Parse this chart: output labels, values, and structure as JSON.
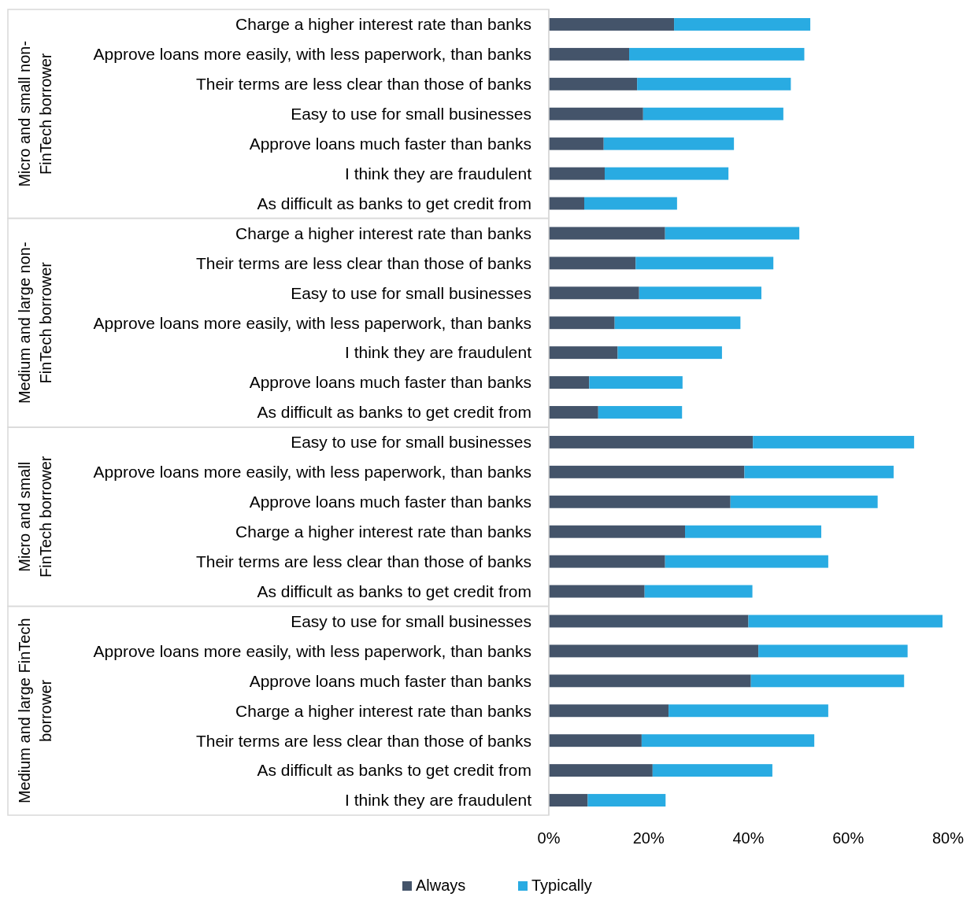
{
  "chart_data": {
    "type": "bar",
    "orientation": "horizontal",
    "stacked": true,
    "legend": "bottom",
    "grid": false,
    "categories": [
      "Charge a higher interest rate than banks",
      "Approve loans more easily, with less paperwork, than banks",
      "Their terms are less clear than those of banks",
      "Easy to use for small businesses",
      "Approve loans much faster than banks",
      "I think they are fraudulent",
      "As difficult as banks to get credit from",
      "Charge a higher interest rate than banks",
      "Their terms are less clear than those of banks",
      "Easy to use for small businesses",
      "Approve loans more easily, with less paperwork, than banks",
      "I think they are fraudulent",
      "Approve loans much faster than banks",
      "As difficult as banks to get credit from",
      "Easy to use for small businesses",
      "Approve loans more easily, with less paperwork, than banks",
      "Approve loans much faster than banks",
      "Charge a higher interest rate than banks",
      "Their terms are less clear than those of banks",
      "As difficult as banks to get credit from",
      "Easy to use for small businesses",
      "Approve loans more easily, with less paperwork, than banks",
      "Approve loans much faster than banks",
      "Charge a higher interest rate than banks",
      "Their terms are less clear than those of banks",
      "As difficult as banks to get credit from",
      "I think they are fraudulent"
    ],
    "series": [
      {
        "name": "Always",
        "color": "#44546a",
        "values": [
          25.1,
          16.1,
          17.7,
          18.9,
          11.0,
          11.2,
          7.1,
          23.3,
          17.4,
          18.1,
          13.2,
          13.8,
          8.1,
          9.9,
          40.9,
          39.2,
          36.4,
          27.3,
          23.3,
          19.2,
          40.0,
          42.0,
          40.5,
          24.0,
          18.6,
          20.8,
          7.8
        ]
      },
      {
        "name": "Typically",
        "color": "#29abe2",
        "values": [
          27.3,
          35.1,
          30.8,
          28.1,
          26.1,
          24.8,
          18.6,
          26.9,
          27.6,
          24.5,
          25.2,
          20.9,
          18.7,
          16.8,
          32.3,
          29.9,
          29.5,
          27.3,
          32.7,
          21.6,
          38.9,
          29.9,
          30.7,
          32.0,
          34.6,
          24.0,
          15.6
        ]
      }
    ],
    "xlim": [
      0,
      80
    ],
    "xticks": [
      {
        "value": 0,
        "label": "0%"
      },
      {
        "value": 20,
        "label": "20%"
      },
      {
        "value": 40,
        "label": "40%"
      },
      {
        "value": 60,
        "label": "60%"
      },
      {
        "value": 80,
        "label": "80%"
      }
    ],
    "annotations": [
      "Micro and small non-FinTech borrower",
      "Medium and large non-FinTech borrower",
      "Micro and small FinTech borrower",
      "Medium and large FinTech borrower"
    ]
  }
}
